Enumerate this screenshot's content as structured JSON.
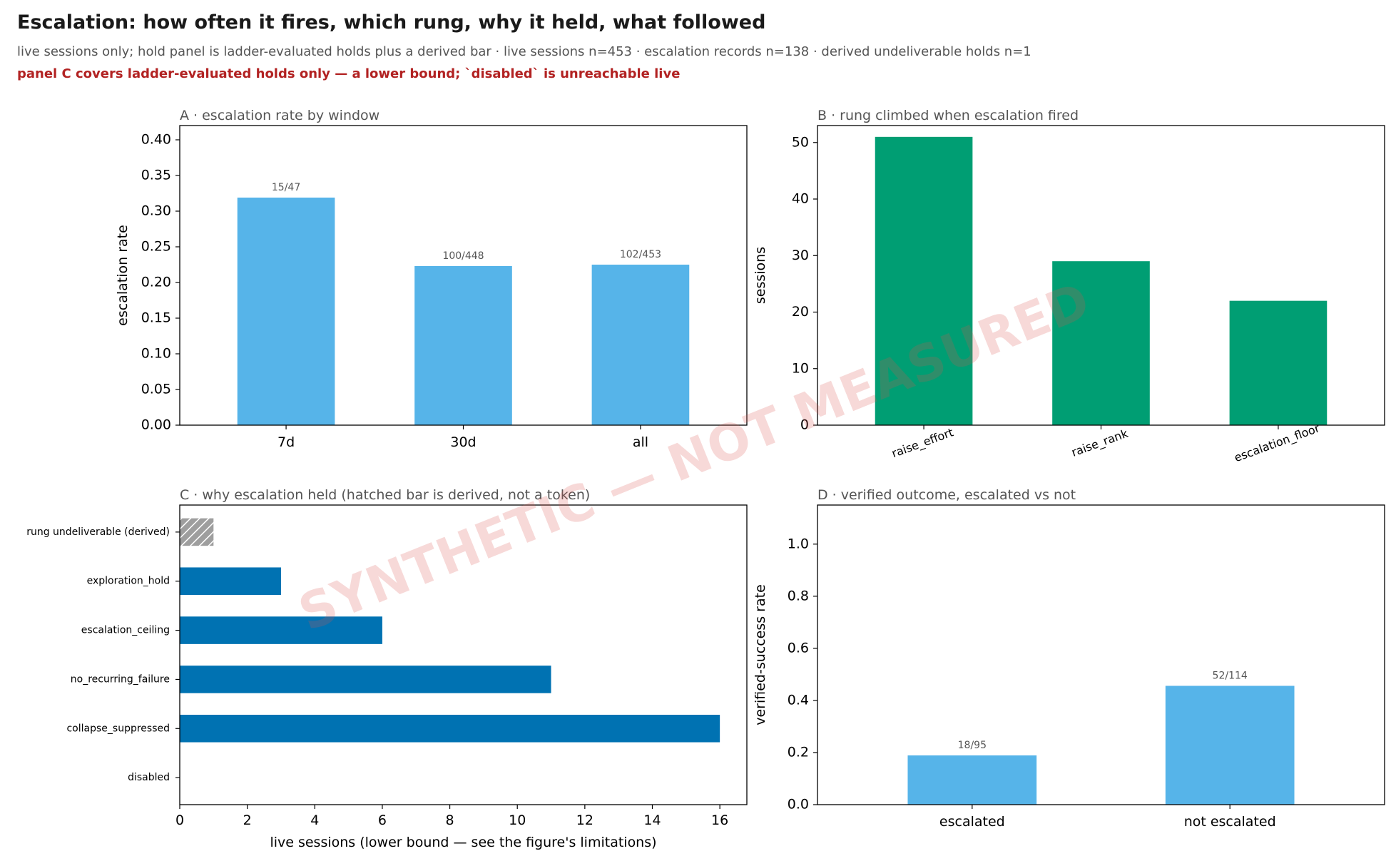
{
  "title": "Escalation: how often it fires, which rung, why it held, what followed",
  "subtitle": "live sessions only; hold panel is ladder-evaluated holds plus a derived bar · live sessions n=453 · escalation records n=138 · derived undeliverable holds n=1",
  "warning": "panel C covers ladder-evaluated holds only — a lower bound; `disabled` is unreachable live",
  "watermark": "SYNTHETIC — NOT MEASURED",
  "colors": {
    "sky_blue": "#56B4E9",
    "green": "#009E73",
    "blue": "#0072B2",
    "derived_gray": "#9e9e9e",
    "warning_red": "#b22222",
    "watermark": "#d9534f"
  },
  "chart_data": [
    {
      "panel": "A",
      "type": "bar",
      "title": "A · escalation rate by window",
      "xlabel": "",
      "ylabel": "escalation rate",
      "categories": [
        "7d",
        "30d",
        "all"
      ],
      "values": [
        0.319,
        0.223,
        0.225
      ],
      "bar_labels": [
        "15/47",
        "100/448",
        "102/453"
      ],
      "ylim": [
        0,
        0.42
      ],
      "yticks": [
        "0.00",
        "0.05",
        "0.10",
        "0.15",
        "0.20",
        "0.25",
        "0.30",
        "0.35",
        "0.40"
      ],
      "color": "#56B4E9",
      "grid": false
    },
    {
      "panel": "B",
      "type": "bar",
      "title": "B · rung climbed when escalation fired",
      "xlabel": "",
      "ylabel": "sessions",
      "categories": [
        "raise_effort",
        "raise_rank",
        "escalation_floor"
      ],
      "values": [
        51,
        29,
        22
      ],
      "ylim": [
        0,
        53
      ],
      "yticks": [
        "0",
        "10",
        "20",
        "30",
        "40",
        "50"
      ],
      "color": "#009E73",
      "grid": false
    },
    {
      "panel": "C",
      "type": "bar",
      "orientation": "horizontal",
      "title": "C · why escalation held (hatched bar is derived, not a token)",
      "xlabel": "live sessions (lower bound — see the figure's limitations)",
      "ylabel": "",
      "categories": [
        "rung undeliverable (derived)",
        "exploration_hold",
        "escalation_ceiling",
        "no_recurring_failure",
        "collapse_suppressed",
        "disabled"
      ],
      "values": [
        1,
        3,
        6,
        11,
        16,
        0
      ],
      "derived": [
        true,
        false,
        false,
        false,
        false,
        false
      ],
      "xlim": [
        0,
        16.8
      ],
      "xticks": [
        "0",
        "2",
        "4",
        "6",
        "8",
        "10",
        "12",
        "14",
        "16"
      ],
      "color": "#0072B2",
      "derived_color": "#9e9e9e",
      "grid": false
    },
    {
      "panel": "D",
      "type": "bar",
      "title": "D · verified outcome, escalated vs not",
      "xlabel": "",
      "ylabel": "verified-success rate",
      "categories": [
        "escalated",
        "not escalated"
      ],
      "values": [
        0.189,
        0.456
      ],
      "bar_labels": [
        "18/95",
        "52/114"
      ],
      "ylim": [
        0,
        1.15
      ],
      "yticks": [
        "0.0",
        "0.2",
        "0.4",
        "0.6",
        "0.8",
        "1.0"
      ],
      "color": "#56B4E9",
      "grid": false
    }
  ]
}
